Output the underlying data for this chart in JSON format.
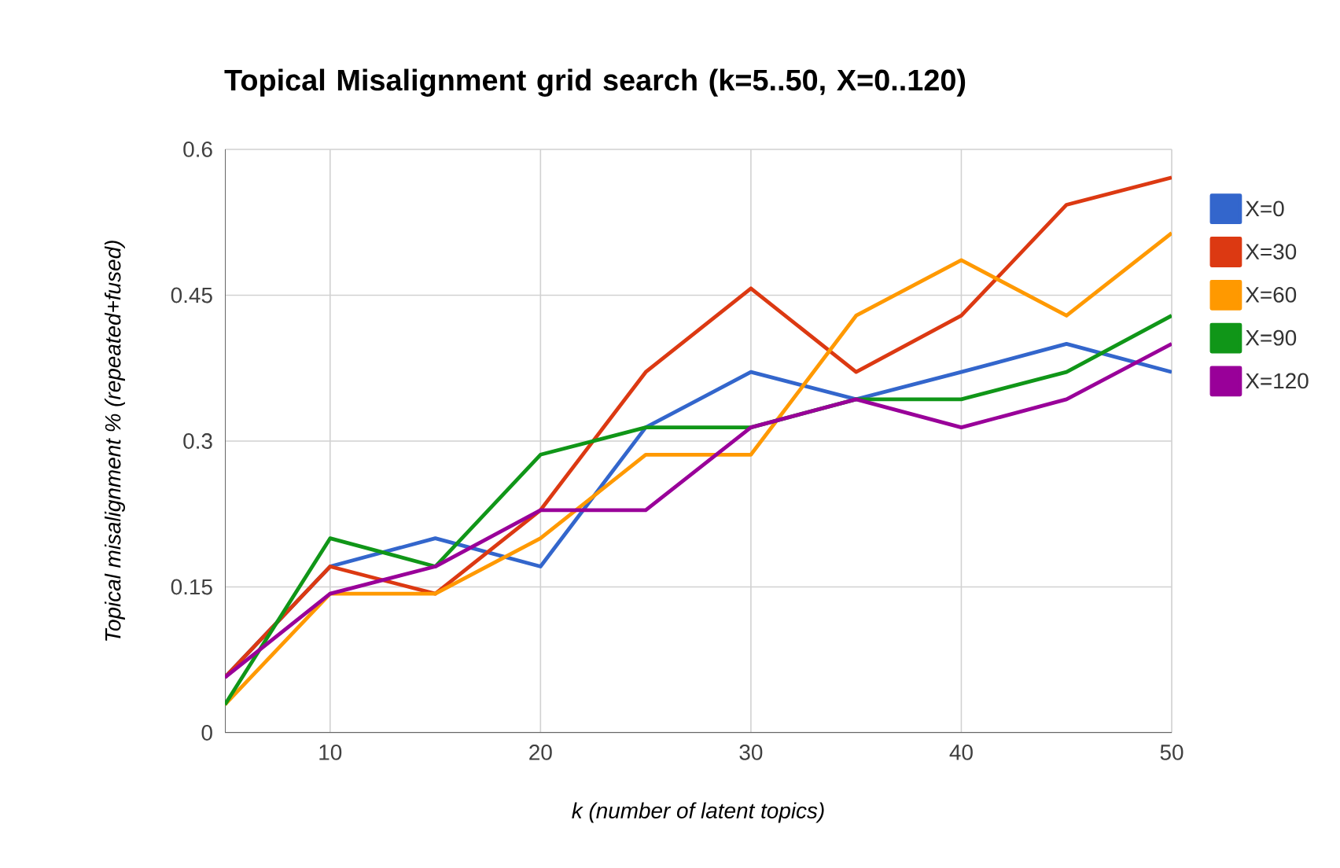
{
  "chart_data": {
    "type": "line",
    "title": "Topical Misalignment grid search (k=5..50, X=0..120)",
    "xlabel": "k (number of latent topics)",
    "ylabel": "Topical misalignment % (repeated+fused)",
    "x": [
      5,
      10,
      15,
      20,
      25,
      30,
      35,
      40,
      45,
      50
    ],
    "series": [
      {
        "name": "X=0",
        "color": "#3366cc",
        "values": [
          0.057,
          0.171,
          0.2,
          0.171,
          0.314,
          0.371,
          0.343,
          0.371,
          0.4,
          0.371
        ]
      },
      {
        "name": "X=30",
        "color": "#dc3912",
        "values": [
          0.057,
          0.171,
          0.143,
          0.229,
          0.371,
          0.457,
          0.371,
          0.429,
          0.543,
          0.571
        ]
      },
      {
        "name": "X=60",
        "color": "#ff9900",
        "values": [
          0.029,
          0.143,
          0.143,
          0.2,
          0.286,
          0.286,
          0.429,
          0.486,
          0.429,
          0.514
        ]
      },
      {
        "name": "X=90",
        "color": "#109618",
        "values": [
          0.029,
          0.2,
          0.171,
          0.286,
          0.314,
          0.314,
          0.343,
          0.343,
          0.371,
          0.429
        ]
      },
      {
        "name": "X=120",
        "color": "#990099",
        "values": [
          0.057,
          0.143,
          0.171,
          0.229,
          0.229,
          0.314,
          0.343,
          0.314,
          0.343,
          0.4
        ]
      }
    ],
    "xlim": [
      5,
      50
    ],
    "xticks": [
      10,
      20,
      30,
      40,
      50
    ],
    "ylim": [
      0,
      0.6
    ],
    "yticks": [
      0,
      0.15,
      0.3,
      0.45,
      0.6
    ],
    "grid": true,
    "legend": "top right"
  }
}
